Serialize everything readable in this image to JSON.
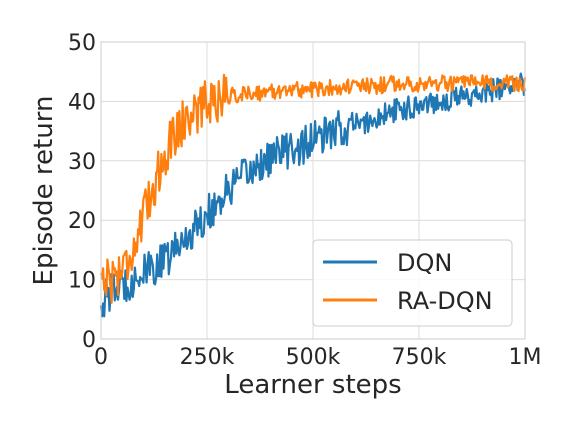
{
  "chart_data": {
    "type": "line",
    "title": "",
    "xlabel": "Learner steps",
    "ylabel": "Episode return",
    "xlim": [
      0,
      1000000
    ],
    "ylim": [
      0,
      50
    ],
    "xticks": [
      {
        "value": 0,
        "label": "0"
      },
      {
        "value": 250000,
        "label": "250k"
      },
      {
        "value": 500000,
        "label": "500k"
      },
      {
        "value": 750000,
        "label": "750k"
      },
      {
        "value": 1000000,
        "label": "1M"
      }
    ],
    "yticks": [
      {
        "value": 0,
        "label": "0"
      },
      {
        "value": 10,
        "label": "10"
      },
      {
        "value": 20,
        "label": "20"
      },
      {
        "value": 30,
        "label": "30"
      },
      {
        "value": 40,
        "label": "40"
      },
      {
        "value": 50,
        "label": "50"
      }
    ],
    "grid": true,
    "legend_position": "bottom-right",
    "series": [
      {
        "name": "DQN",
        "color": "#1f77b4",
        "x": [
          0,
          25000,
          50000,
          75000,
          100000,
          125000,
          150000,
          175000,
          200000,
          225000,
          250000,
          275000,
          300000,
          325000,
          350000,
          375000,
          400000,
          425000,
          450000,
          475000,
          500000,
          525000,
          550000,
          575000,
          600000,
          625000,
          650000,
          675000,
          700000,
          725000,
          750000,
          775000,
          800000,
          825000,
          850000,
          875000,
          900000,
          925000,
          950000,
          975000,
          1000000
        ],
        "y": [
          6,
          8,
          9,
          10,
          11,
          12,
          13,
          15,
          17,
          19,
          21,
          23,
          25,
          26.5,
          28,
          29.5,
          30.5,
          31.5,
          32,
          32.5,
          33.5,
          34,
          35,
          35.5,
          36,
          36.5,
          37,
          38,
          38.5,
          39,
          39.5,
          40,
          40,
          40.5,
          41,
          41,
          41.5,
          42,
          42,
          42.5,
          43
        ]
      },
      {
        "name": "RA-DQN",
        "color": "#ff7f0e",
        "x": [
          0,
          25000,
          50000,
          75000,
          100000,
          125000,
          150000,
          175000,
          200000,
          225000,
          250000,
          275000,
          300000,
          325000,
          350000,
          375000,
          400000,
          425000,
          450000,
          475000,
          500000,
          525000,
          550000,
          575000,
          600000,
          625000,
          650000,
          675000,
          700000,
          725000,
          750000,
          775000,
          800000,
          825000,
          850000,
          875000,
          900000,
          925000,
          950000,
          975000,
          1000000
        ],
        "y": [
          11,
          10,
          12,
          15,
          20,
          26,
          31,
          35,
          37,
          38.5,
          40,
          40.5,
          41,
          41,
          41.5,
          41.5,
          41.5,
          42,
          42,
          42,
          42,
          42,
          42.5,
          42.5,
          42.5,
          42.5,
          42.5,
          43,
          43,
          43,
          43,
          43,
          43,
          43,
          43,
          43,
          43,
          43,
          43,
          43,
          43
        ]
      }
    ]
  }
}
